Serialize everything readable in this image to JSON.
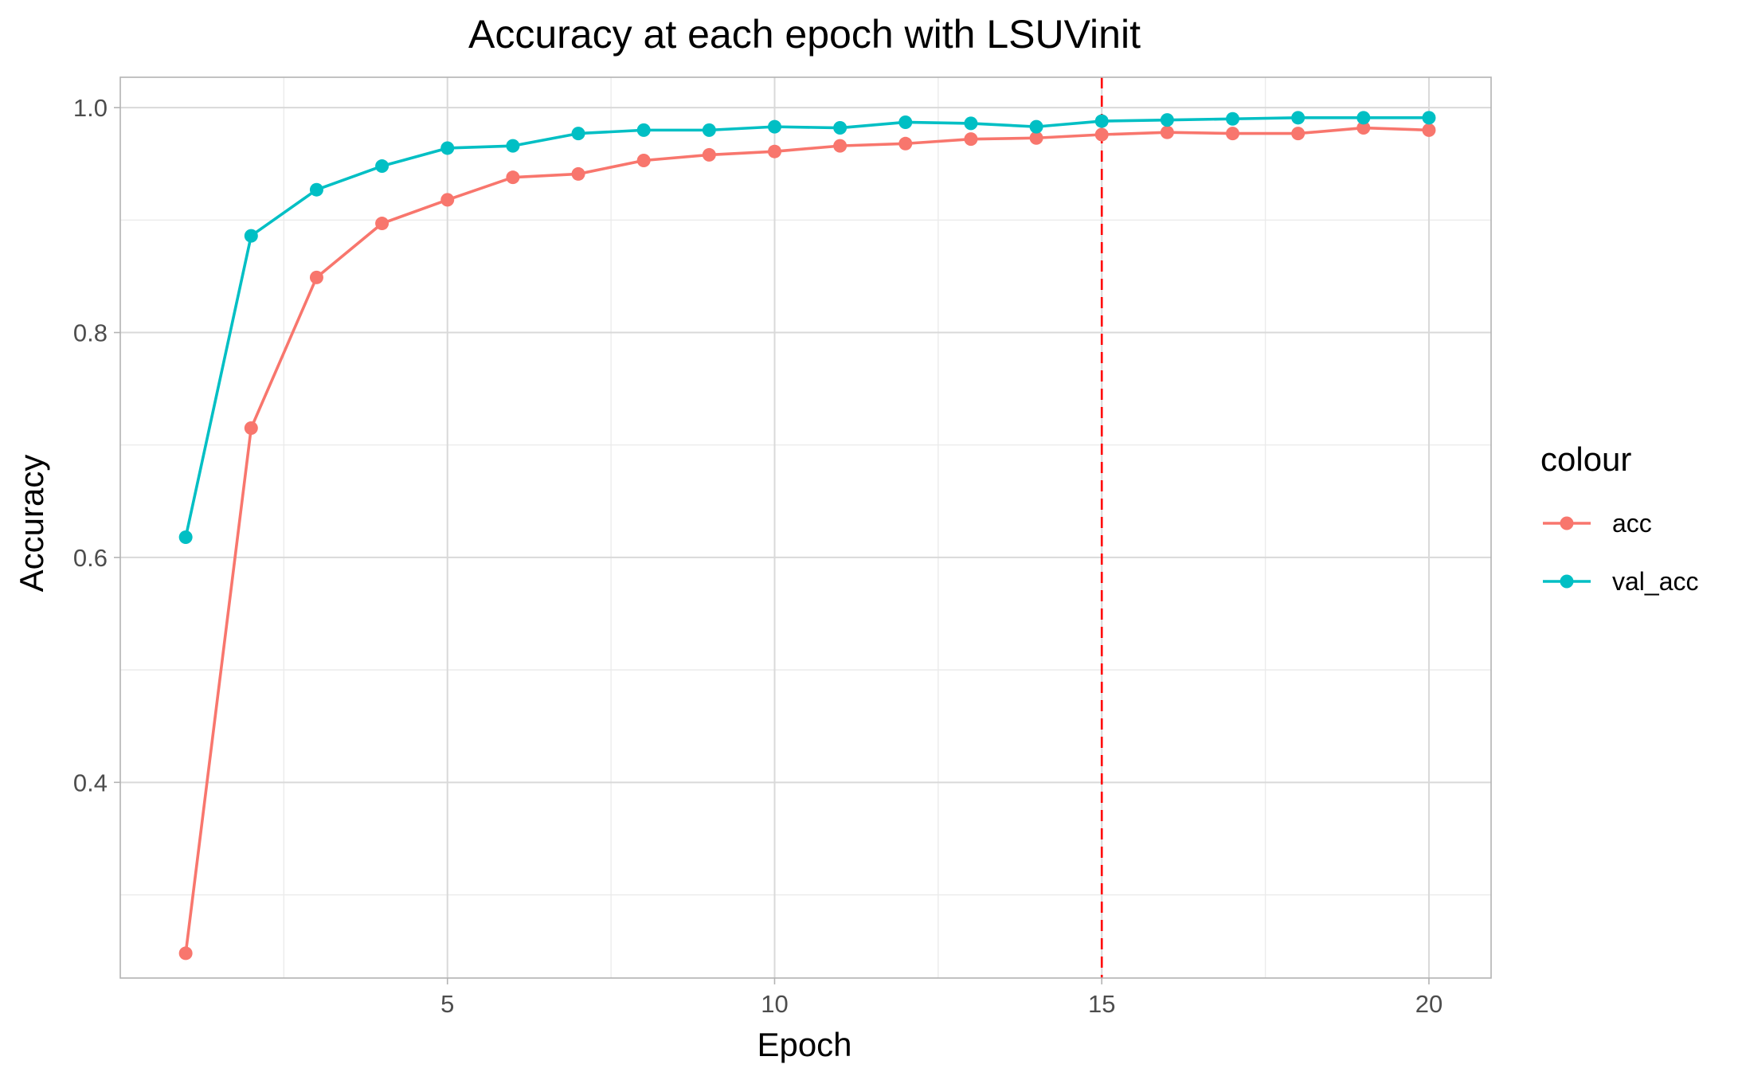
{
  "chart_data": {
    "type": "line",
    "title": "Accuracy at each epoch with LSUVinit",
    "xlabel": "Epoch",
    "ylabel": "Accuracy",
    "x": [
      1,
      2,
      3,
      4,
      5,
      6,
      7,
      8,
      9,
      10,
      11,
      12,
      13,
      14,
      15,
      16,
      17,
      18,
      19,
      20
    ],
    "xlim": [
      0.0,
      20.95
    ],
    "ylim": [
      0.226,
      1.027
    ],
    "x_ticks": [
      5,
      10,
      15,
      20
    ],
    "x_tick_labels": [
      "5",
      "10",
      "15",
      "20"
    ],
    "x_minor_ticks": [
      2.5,
      7.5,
      12.5,
      17.5
    ],
    "y_ticks": [
      0.4,
      0.6,
      0.8,
      1.0
    ],
    "y_tick_labels": [
      "0.4",
      "0.6",
      "0.8",
      "1.0"
    ],
    "y_minor_ticks": [
      0.3,
      0.5,
      0.7,
      0.9
    ],
    "grid": true,
    "legend": {
      "title": "colour",
      "position": "right"
    },
    "series": [
      {
        "name": "acc",
        "color": "#F8766D",
        "values": [
          0.248,
          0.715,
          0.849,
          0.897,
          0.918,
          0.938,
          0.941,
          0.953,
          0.958,
          0.961,
          0.966,
          0.968,
          0.972,
          0.973,
          0.976,
          0.978,
          0.977,
          0.977,
          0.982,
          0.98
        ]
      },
      {
        "name": "val_acc",
        "color": "#00BFC4",
        "values": [
          0.618,
          0.886,
          0.927,
          0.948,
          0.964,
          0.966,
          0.977,
          0.98,
          0.98,
          0.983,
          0.982,
          0.987,
          0.986,
          0.983,
          0.988,
          0.989,
          0.99,
          0.991,
          0.991,
          0.991
        ]
      }
    ],
    "reference_lines": [
      {
        "axis": "x",
        "value": 15,
        "style": "dashed",
        "color": "#FF0000"
      }
    ]
  }
}
